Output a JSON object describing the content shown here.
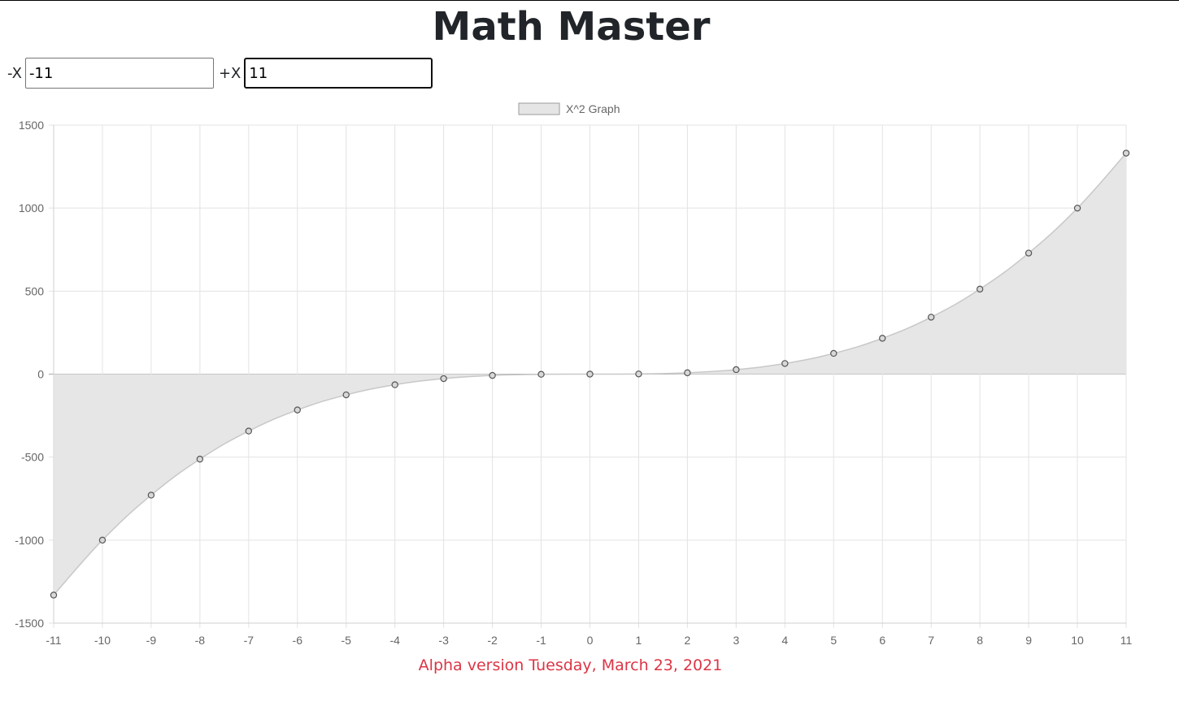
{
  "header": {
    "title": "Math Master"
  },
  "controls": {
    "min_label": "-X",
    "min_value": "-11",
    "max_label": "+X",
    "max_value": "11"
  },
  "footer": {
    "version_note": "Alpha version Tuesday, March 23, 2021"
  },
  "colors": {
    "fill": "#e5e5e5",
    "line": "#c8c8c8",
    "point_stroke": "#555555",
    "grid": "#e3e3e3",
    "zero_line": "#aaaaaa",
    "accent_text": "#dc3545"
  },
  "chart_data": {
    "type": "line",
    "title": "",
    "legend": {
      "position": "top",
      "entries": [
        "X^2 Graph"
      ]
    },
    "series": [
      {
        "name": "X^2 Graph",
        "x": [
          -11,
          -10,
          -9,
          -8,
          -7,
          -6,
          -5,
          -4,
          -3,
          -2,
          -1,
          0,
          1,
          2,
          3,
          4,
          5,
          6,
          7,
          8,
          9,
          10,
          11
        ],
        "values": [
          -1331,
          -1000,
          -729,
          -512,
          -343,
          -216,
          -125,
          -64,
          -27,
          -8,
          -1,
          0,
          1,
          8,
          27,
          64,
          125,
          216,
          343,
          512,
          729,
          1000,
          1331
        ],
        "fill": true
      }
    ],
    "xlabel": "",
    "ylabel": "",
    "xlim": [
      -11,
      11
    ],
    "ylim": [
      -1500,
      1500
    ],
    "yticks": [
      1500,
      1000,
      500,
      0,
      -500,
      -1000,
      -1500
    ],
    "grid": true
  }
}
